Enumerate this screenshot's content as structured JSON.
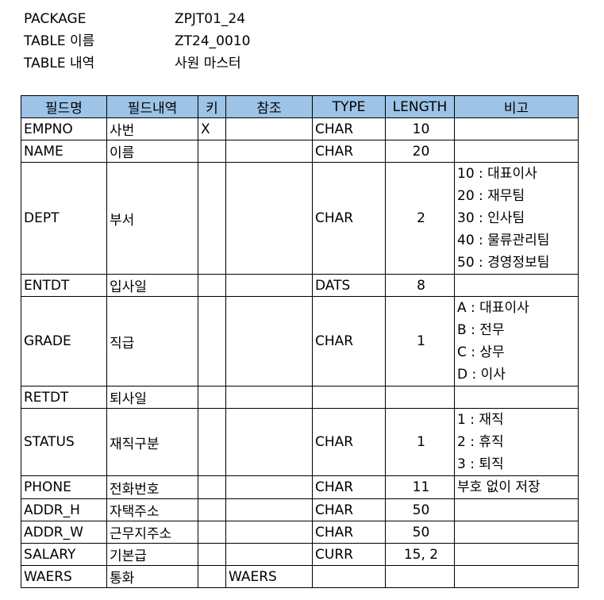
{
  "header": {
    "package_label": "PACKAGE",
    "package_value": "ZPJT01_24",
    "table_name_label": "TABLE 이름",
    "table_name_value": "ZT24_0010",
    "table_desc_label": "TABLE 내역",
    "table_desc_value": "사원 마스터"
  },
  "table": {
    "columns": [
      "필드명",
      "필드내역",
      "키",
      "참조",
      "TYPE",
      "LENGTH",
      "비고"
    ],
    "rows": [
      {
        "field": "EMPNO",
        "desc": "사번",
        "key": "X",
        "ref": "",
        "type": "CHAR",
        "length": "10",
        "notes": []
      },
      {
        "field": "NAME",
        "desc": "이름",
        "key": "",
        "ref": "",
        "type": "CHAR",
        "length": "20",
        "notes": []
      },
      {
        "field": "DEPT",
        "desc": "부서",
        "key": "",
        "ref": "",
        "type": "CHAR",
        "length": "2",
        "notes": [
          "10 : 대표이사",
          "20 : 재무팀",
          "30 : 인사팀",
          "40 : 물류관리팀",
          "50 : 경영정보팀"
        ]
      },
      {
        "field": "ENTDT",
        "desc": "입사일",
        "key": "",
        "ref": "",
        "type": "DATS",
        "length": "8",
        "notes": []
      },
      {
        "field": "GRADE",
        "desc": "직급",
        "key": "",
        "ref": "",
        "type": "CHAR",
        "length": "1",
        "notes": [
          "A : 대표이사",
          "B : 전무",
          "C : 상무",
          "D : 이사"
        ]
      },
      {
        "field": "RETDT",
        "desc": "퇴사일",
        "key": "",
        "ref": "",
        "type": "",
        "length": "",
        "notes": []
      },
      {
        "field": "STATUS",
        "desc": "재직구분",
        "key": "",
        "ref": "",
        "type": "CHAR",
        "length": "1",
        "notes": [
          "1 : 재직",
          "2 : 휴직",
          "3 : 퇴직"
        ]
      },
      {
        "field": "PHONE",
        "desc": "전화번호",
        "key": "",
        "ref": "",
        "type": "CHAR",
        "length": "11",
        "notes": [
          "부호 없이 저장"
        ]
      },
      {
        "field": "ADDR_H",
        "desc": "자택주소",
        "key": "",
        "ref": "",
        "type": "CHAR",
        "length": "50",
        "notes": []
      },
      {
        "field": "ADDR_W",
        "desc": "근무지주소",
        "key": "",
        "ref": "",
        "type": "CHAR",
        "length": "50",
        "notes": []
      },
      {
        "field": "SALARY",
        "desc": "기본급",
        "key": "",
        "ref": "",
        "type": "CURR",
        "length": "15, 2",
        "notes": []
      },
      {
        "field": "WAERS",
        "desc": "통화",
        "key": "",
        "ref": "WAERS",
        "type": "",
        "length": "",
        "notes": []
      }
    ]
  },
  "colors": {
    "header_fill": "#9dc3e6",
    "border": "#000000"
  }
}
